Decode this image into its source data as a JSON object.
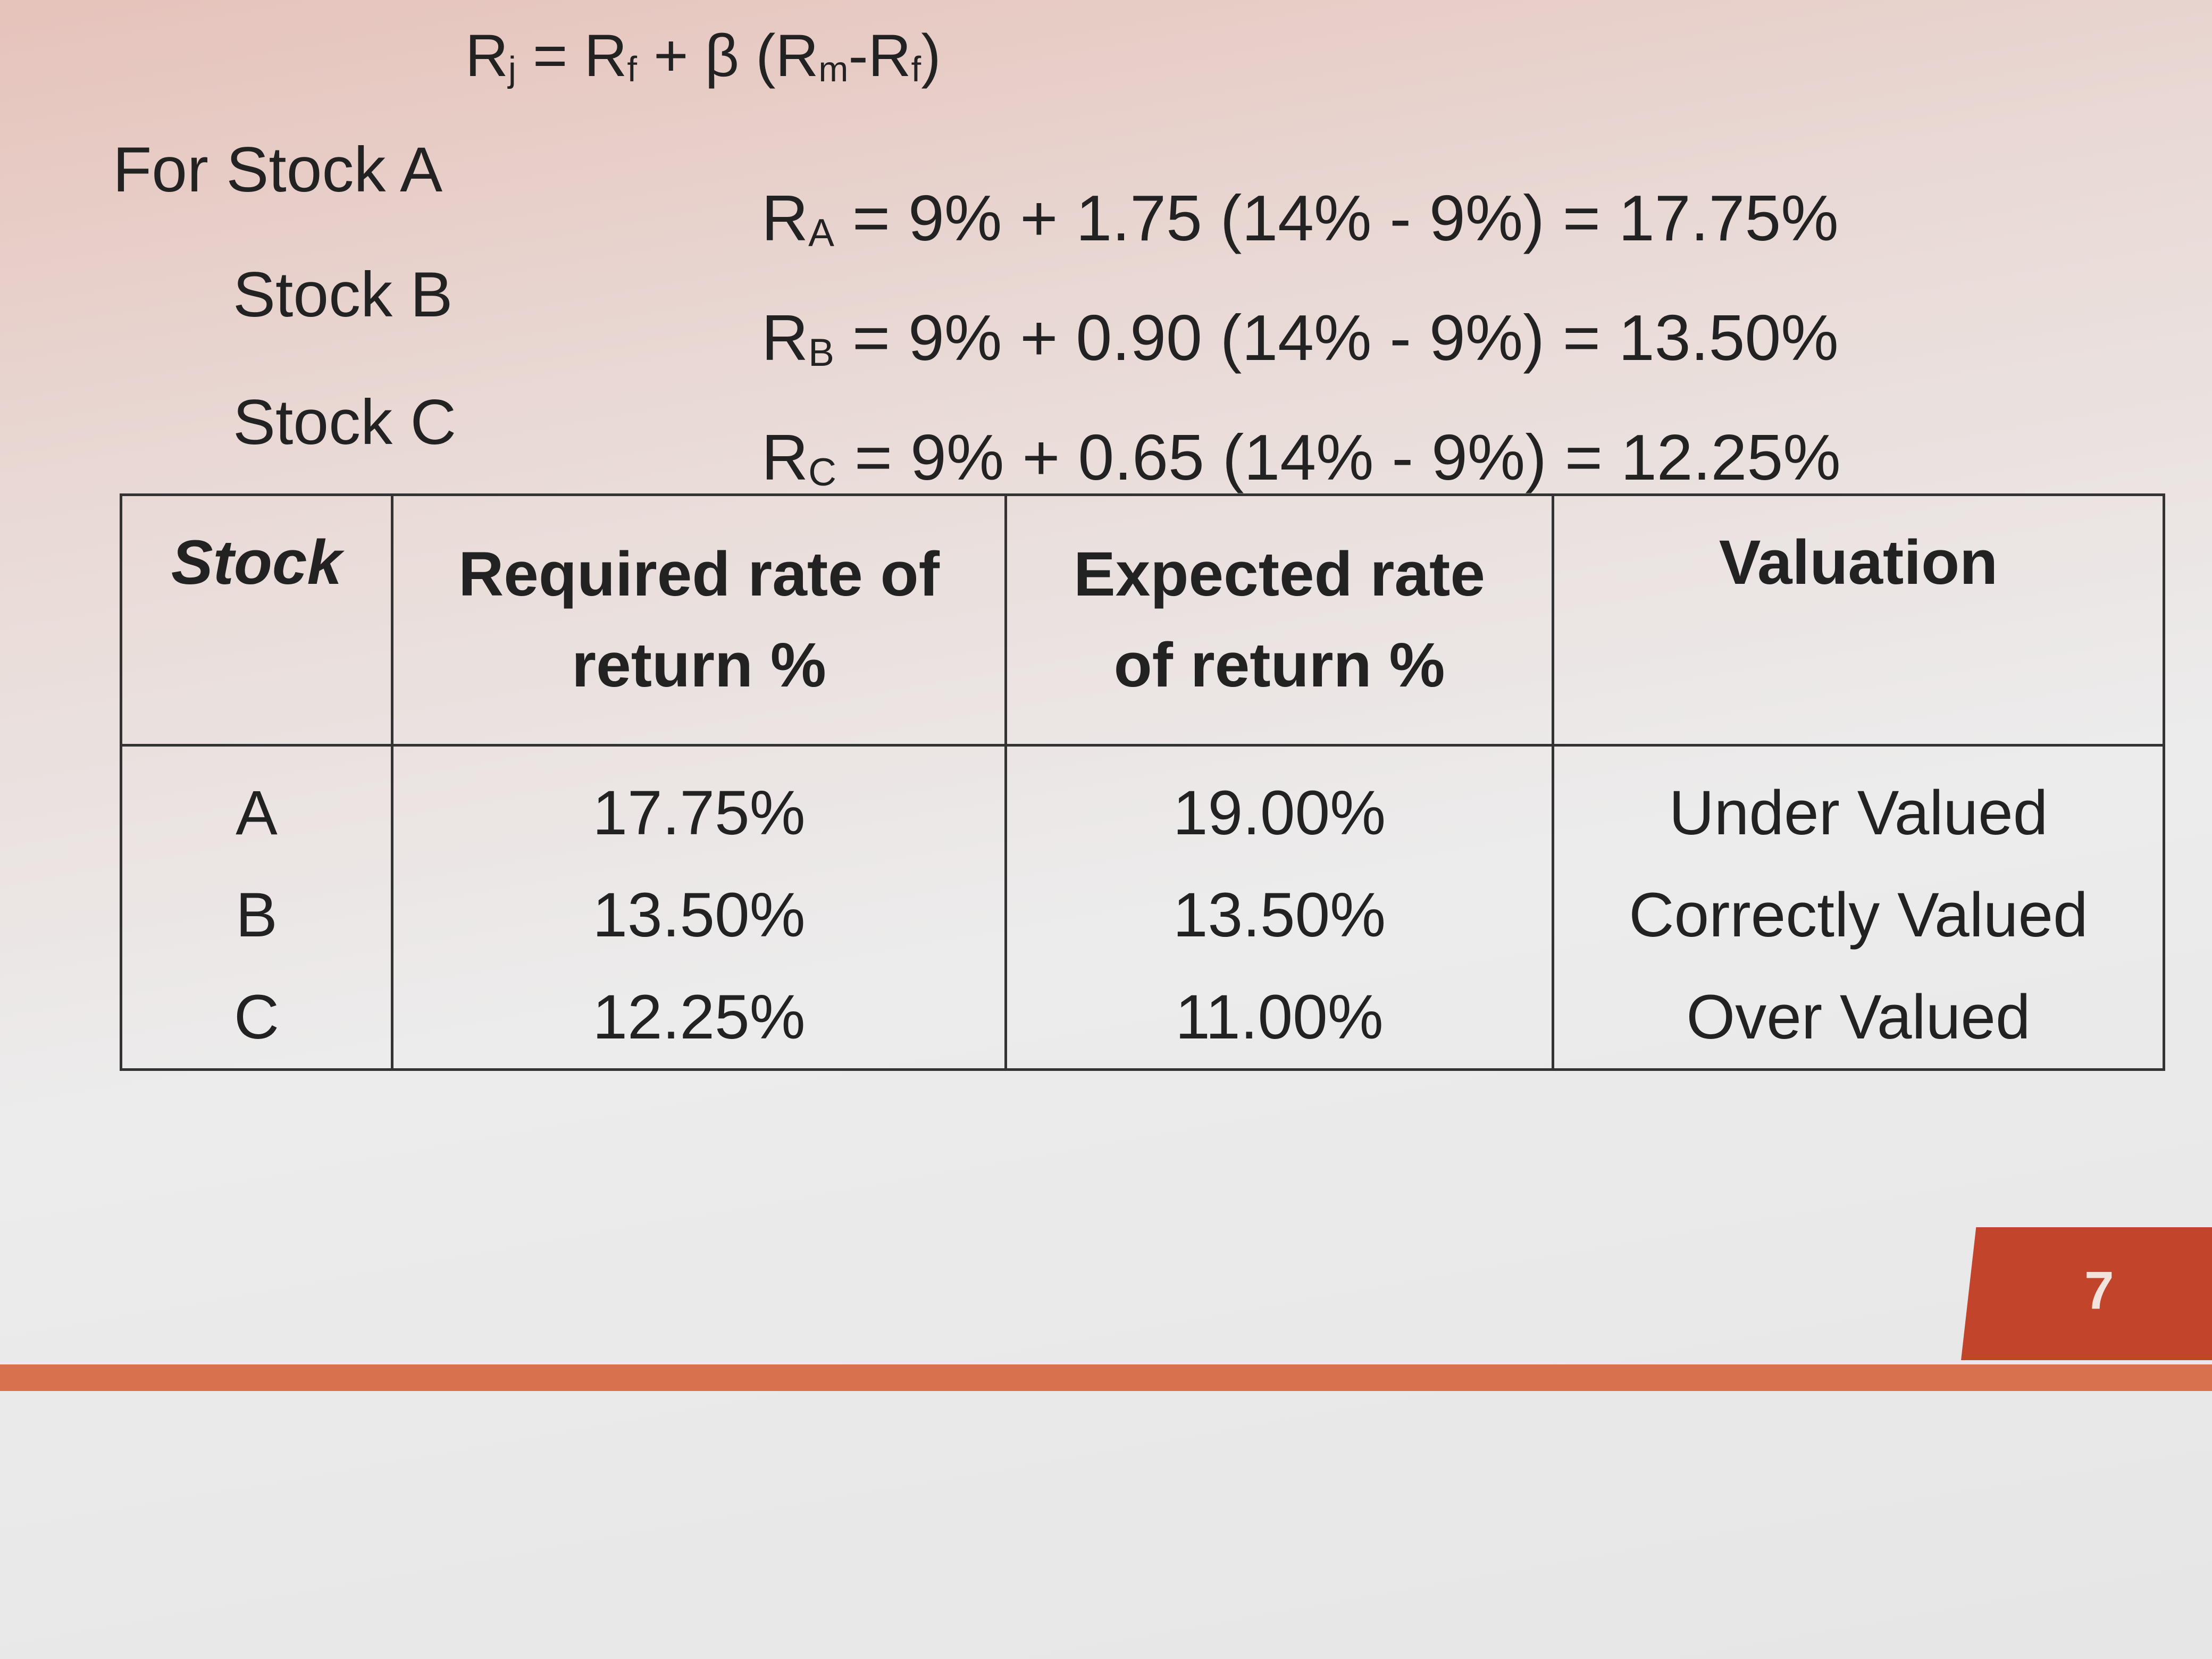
{
  "formula": [
    "R",
    "j",
    " = R",
    "f",
    " + β (R",
    "m",
    "-R",
    "f",
    ")"
  ],
  "calculations": [
    {
      "label": "For Stock A",
      "symbol": "R",
      "subscript": "A",
      "expression": "= 9% + 1.75 (14% - 9%) = 17.75%"
    },
    {
      "label": "Stock B",
      "symbol": "R",
      "subscript": "B",
      "expression": "= 9% + 0.90 (14% - 9%) = 13.50%"
    },
    {
      "label": "Stock C",
      "symbol": "R",
      "subscript": "C",
      "expression": "= 9% + 0.65 (14% - 9%)  = 12.25%"
    }
  ],
  "table": {
    "header": [
      "Stock",
      "Required rate of return %",
      "Expected rate of return %",
      "Valuation"
    ],
    "rows": [
      [
        "A",
        "17.75%",
        "19.00%",
        "Under Valued"
      ],
      [
        "B",
        "13.50%",
        "13.50%",
        "Correctly Valued"
      ],
      [
        "C",
        "12.25%",
        "11.00%",
        "Over Valued"
      ]
    ]
  },
  "page_number": "7"
}
